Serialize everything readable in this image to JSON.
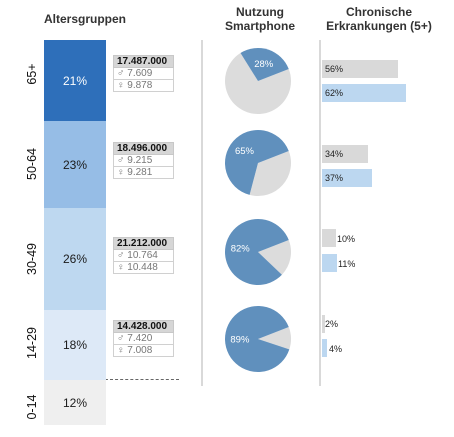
{
  "headers": {
    "age": "Altersgruppen",
    "smartphone_line1": "Nutzung",
    "smartphone_line2": "Smartphone",
    "chronic_line1": "Chronische",
    "chronic_line2": "Erkrankungen (5+)"
  },
  "chart_data": {
    "type": "table",
    "categories": [
      "65+",
      "50-64",
      "30-49",
      "14-29",
      "0-14"
    ],
    "age_share": [
      "21%",
      "23%",
      "26%",
      "18%",
      "12%"
    ],
    "population": [
      {
        "total": "17.487.000",
        "male": "7.609",
        "female": "9.878"
      },
      {
        "total": "18.496.000",
        "male": "9.215",
        "female": "9.281"
      },
      {
        "total": "21.212.000",
        "male": "10.764",
        "female": "10.448"
      },
      {
        "total": "14.428.000",
        "male": "7.420",
        "female": "7.008"
      }
    ],
    "smartphone_usage": [
      28,
      65,
      82,
      89
    ],
    "smartphone_labels": [
      "28%",
      "65%",
      "82%",
      "89%"
    ],
    "chronic": {
      "series": [
        {
          "values": [
            56,
            34,
            10,
            2
          ],
          "labels": [
            "56%",
            "34%",
            "10%",
            "2%"
          ]
        },
        {
          "values": [
            62,
            37,
            11,
            4
          ],
          "labels": [
            "62%",
            "37%",
            "11%",
            "4%"
          ]
        }
      ]
    },
    "colors": {
      "seg": [
        "#2e6fba",
        "#96bde6",
        "#bed8f0",
        "#dde9f7",
        "#efefef"
      ],
      "pie_fill": "#6090bd",
      "pie_rest": "#dcdcdc",
      "bar_grey": "#d9d9d9",
      "bar_blue": "#bcd7f0"
    }
  },
  "icons": {
    "male": "male-symbol-icon",
    "female": "female-symbol-icon"
  },
  "symbols": {
    "male": "♂",
    "female": "♀"
  }
}
